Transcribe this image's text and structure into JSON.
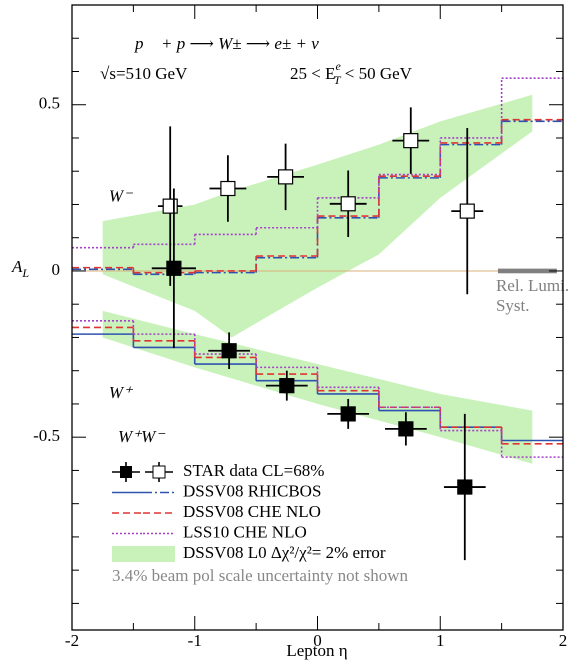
{
  "chart_data": {
    "type": "asymmetry",
    "reaction": "p⃗ + p   ⟶ W±   ⟶ e±  +   ν",
    "energy": "√s=510 GeV",
    "energy_cut": {
      "pre": "25 < E",
      "sub": "T",
      "sup": "e",
      "post": " < 50 GeV"
    },
    "xlabel": "Lepton η",
    "ylabel": {
      "text": "A",
      "sub": "L"
    },
    "xlim": [
      -2,
      2
    ],
    "ylim": [
      -1.08,
      0.8
    ],
    "xticks": [
      -2,
      -1,
      0,
      1,
      2
    ],
    "yticks": [
      -0.5,
      0,
      0.5
    ],
    "xminorticks": [
      -1.5,
      -0.5,
      0.5,
      1.5
    ],
    "yminorticks": [
      -1,
      -0.9,
      -0.8,
      -0.7,
      -0.6,
      -0.4,
      -0.3,
      -0.2,
      -0.1,
      0.1,
      0.2,
      0.3,
      0.4,
      0.6,
      0.7
    ],
    "zero_line_color": "#d8b27a",
    "band": {
      "name": "DSSV08 L0 Δχ²/χ²= 2% error",
      "color": "#c8f2ba",
      "minus": {
        "x": [
          -1.75,
          -1,
          -0.7,
          0,
          0.5,
          1,
          1.75
        ],
        "lower": [
          -0.01,
          -0.12,
          -0.2,
          -0.05,
          0.05,
          0.22,
          0.42
        ],
        "upper": [
          0.15,
          0.2,
          0.24,
          0.32,
          0.38,
          0.45,
          0.53
        ]
      },
      "plus": {
        "x": [
          -1.75,
          -1,
          0,
          1,
          1.75
        ],
        "lower": [
          -0.2,
          -0.29,
          -0.4,
          -0.5,
          -0.58
        ],
        "upper": [
          -0.12,
          -0.19,
          -0.28,
          -0.37,
          -0.42
        ]
      }
    },
    "bin_edges": [
      -2,
      -1.5,
      -1,
      -0.5,
      0,
      0.5,
      1,
      1.5,
      2
    ],
    "theory": [
      {
        "name": "DSSV08  RHICBOS",
        "color": "#2f52b0",
        "dash_minus": "dashdot",
        "dash_plus": "solid",
        "minus": [
          0.005,
          -0.01,
          -0.005,
          0.04,
          0.16,
          0.28,
          0.38,
          0.45
        ],
        "plus": [
          -0.19,
          -0.23,
          -0.28,
          -0.33,
          -0.37,
          -0.42,
          -0.47,
          -0.51
        ]
      },
      {
        "name": "DSSV08  CHE NLO",
        "color": "#e03434",
        "dash_minus": "dashed",
        "dash_plus": "dashed",
        "minus": [
          0.01,
          -0.005,
          0.0,
          0.045,
          0.165,
          0.285,
          0.385,
          0.455
        ],
        "plus": [
          -0.17,
          -0.21,
          -0.26,
          -0.31,
          -0.36,
          -0.41,
          -0.47,
          -0.52
        ]
      },
      {
        "name": "LSS10 CHE NLO",
        "color": "#a540c8",
        "dash_minus": "dotted",
        "dash_plus": "dotted",
        "minus": [
          0.07,
          0.08,
          0.11,
          0.13,
          0.22,
          0.29,
          0.4,
          0.58
        ],
        "plus": [
          -0.15,
          -0.19,
          -0.25,
          -0.29,
          -0.35,
          -0.41,
          -0.48,
          -0.56
        ]
      }
    ],
    "data": {
      "name": "STAR data CL=68%",
      "sets": [
        {
          "label": "W⁻",
          "marker": "open",
          "label_x": -1.7,
          "label_y": 0.22,
          "x": [
            -1.2,
            -0.73,
            -0.26,
            0.25,
            0.76,
            1.22
          ],
          "y": [
            0.195,
            0.248,
            0.283,
            0.202,
            0.392,
            0.18
          ],
          "xerr": [
            0.1,
            0.15,
            0.15,
            0.15,
            0.15,
            0.13
          ],
          "yerr": [
            0.24,
            0.1,
            0.1,
            0.1,
            0.1,
            0.25
          ]
        },
        {
          "label": "W⁺",
          "marker": "filled",
          "label_x": -1.7,
          "label_y": -0.37,
          "x": [
            -1.17,
            -0.72,
            -0.25,
            0.25,
            0.72,
            1.2
          ],
          "y": [
            0.008,
            -0.24,
            -0.345,
            -0.43,
            -0.475,
            -0.65
          ],
          "xerr": [
            0.18,
            0.17,
            0.17,
            0.17,
            0.17,
            0.17
          ],
          "yerr": [
            0.24,
            0.055,
            0.045,
            0.045,
            0.05,
            0.22
          ]
        }
      ]
    },
    "legend_header": "W⁺W⁻",
    "rel_lumi": {
      "line1": "Rel. Lumi.",
      "line2": "Syst.",
      "xrange": [
        1.47,
        1.95
      ],
      "value": 0.007,
      "color": "#808080"
    },
    "note": "3.4% beam pol scale uncertainty not shown"
  }
}
